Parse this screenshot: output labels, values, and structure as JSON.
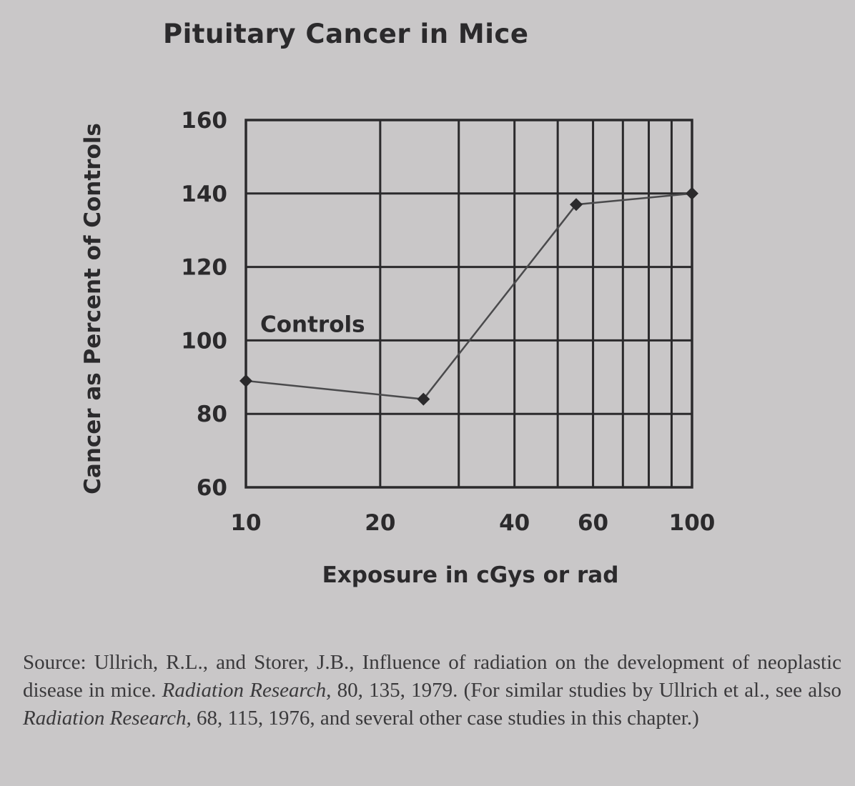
{
  "chart_data": {
    "type": "line",
    "title": "Pituitary Cancer in Mice",
    "xlabel": "Exposure in cGys or rad",
    "ylabel": "Cancer as Percent of Controls",
    "x_scale": "log",
    "xlim": [
      10,
      100
    ],
    "ylim": [
      60,
      160
    ],
    "x_tick_labels": [
      "10",
      "20",
      "40",
      "60",
      "100"
    ],
    "x_ticks": [
      10,
      20,
      40,
      60,
      100
    ],
    "x_gridlines": [
      10,
      20,
      30,
      40,
      50,
      60,
      70,
      80,
      90,
      100
    ],
    "y_ticks": [
      60,
      80,
      100,
      120,
      140,
      160
    ],
    "grid": true,
    "annotations": [
      {
        "text": "Controls",
        "x": 10,
        "y": 100
      }
    ],
    "series": [
      {
        "x": [
          10,
          25,
          55,
          100
        ],
        "y": [
          89,
          84,
          137,
          140
        ]
      }
    ]
  },
  "source": {
    "prefix": "Source: Ullrich, R.L., and Storer, J.B., Influence of radiation on the development of neoplastic disease in mice. ",
    "journal1": "Radiation Research,",
    "mid": " 80, 135, 1979. (For similar studies by Ullrich et al., see also ",
    "journal2": "Radiation Research,",
    "suffix": " 68, 115, 1976, and several other case studies in this chapter.)"
  },
  "colors": {
    "background": "#c9c7c8",
    "ink": "#2b2a2c",
    "line": "#4a4a4c"
  }
}
